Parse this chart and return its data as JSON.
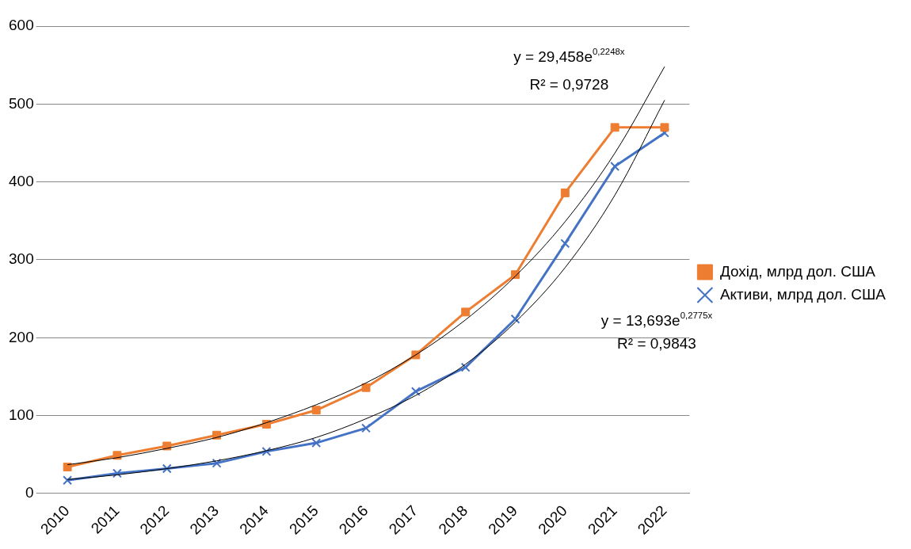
{
  "chart_data": {
    "type": "line",
    "categories": [
      "2010",
      "2011",
      "2012",
      "2013",
      "2014",
      "2015",
      "2016",
      "2017",
      "2018",
      "2019",
      "2020",
      "2021",
      "2022"
    ],
    "series": [
      {
        "name": "Дохід, млрд дол. США",
        "color": "#ed7d31",
        "marker": "square",
        "values": [
          34,
          49,
          61,
          75,
          89,
          107,
          136,
          178,
          233,
          281,
          386,
          470,
          470
        ]
      },
      {
        "name": "Активи, млрд дол. США",
        "color": "#4472c4",
        "marker": "cross",
        "values": [
          17,
          26,
          32,
          39,
          54,
          65,
          84,
          131,
          162,
          224,
          321,
          420,
          463
        ]
      },
      {
        "type": "line",
        "color": "#000000",
        "marker": "none",
        "values": [
          37,
          46,
          58,
          72,
          91,
          114,
          142,
          178,
          223,
          279,
          349,
          437,
          548
        ]
      },
      {
        "type": "line",
        "color": "#000000",
        "marker": "none",
        "values": [
          18,
          24,
          32,
          42,
          55,
          72,
          96,
          126,
          166,
          220,
          290,
          383,
          505
        ]
      }
    ],
    "ylim": [
      0,
      600
    ],
    "yticks": [
      0,
      100,
      200,
      300,
      400,
      500,
      600
    ],
    "grid": "y",
    "legend": "right",
    "annotations": [
      "y = 29,458e$^{0,2248x}$",
      "R² = 0,9728",
      "y = 13,693e$^{0,2775x}$",
      "R² = 0,9843"
    ]
  }
}
